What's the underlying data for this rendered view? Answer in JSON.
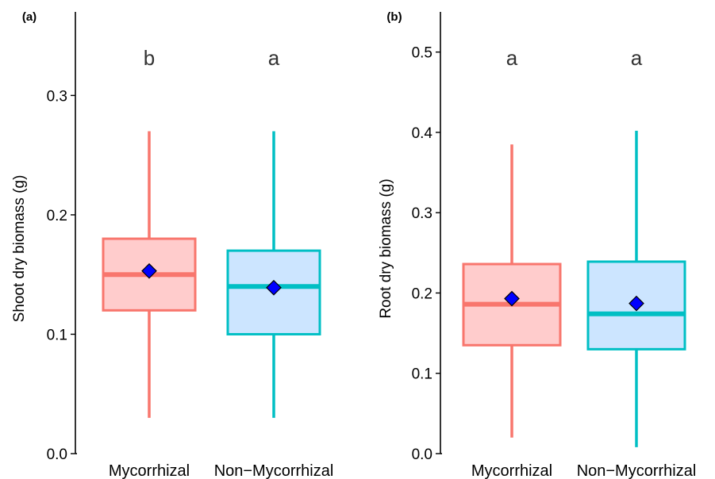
{
  "chart_data": [
    {
      "type": "box",
      "panel_label": "(a)",
      "ylabel": "Shoot dry biomass (g)",
      "ylim": [
        0,
        0.37
      ],
      "yticks": [
        "0.0",
        "0.1",
        "0.2",
        "0.3"
      ],
      "categories": [
        "Mycorrhizal",
        "Non−Mycorrhizal"
      ],
      "boxes": [
        {
          "category": "Mycorrhizal",
          "min": 0.03,
          "q1": 0.12,
          "median": 0.15,
          "q3": 0.18,
          "max": 0.27,
          "mean": 0.153,
          "letter": "b"
        },
        {
          "category": "Non−Mycorrhizal",
          "min": 0.03,
          "q1": 0.1,
          "median": 0.14,
          "q3": 0.17,
          "max": 0.27,
          "mean": 0.139,
          "letter": "a"
        }
      ],
      "grid": false
    },
    {
      "type": "box",
      "panel_label": "(b)",
      "ylabel": "Root dry biomass (g)",
      "ylim": [
        0,
        0.55
      ],
      "yticks": [
        "0.0",
        "0.1",
        "0.2",
        "0.3",
        "0.4",
        "0.5"
      ],
      "categories": [
        "Mycorrhizal",
        "Non−Mycorrhizal"
      ],
      "boxes": [
        {
          "category": "Mycorrhizal",
          "min": 0.02,
          "q1": 0.135,
          "median": 0.186,
          "q3": 0.236,
          "max": 0.385,
          "mean": 0.193,
          "letter": "a"
        },
        {
          "category": "Non−Mycorrhizal",
          "min": 0.008,
          "q1": 0.13,
          "median": 0.174,
          "q3": 0.239,
          "max": 0.402,
          "mean": 0.187,
          "letter": "a"
        }
      ],
      "grid": false
    }
  ],
  "colors": {
    "mycorrhizal_line": "#F8766D",
    "mycorrhizal_fill": "#FFCCCC",
    "non_mycorrhizal_line": "#00BFC4",
    "non_mycorrhizal_fill": "#CCE5FF",
    "mean_marker": "#0000FF",
    "axis": "#000000"
  }
}
